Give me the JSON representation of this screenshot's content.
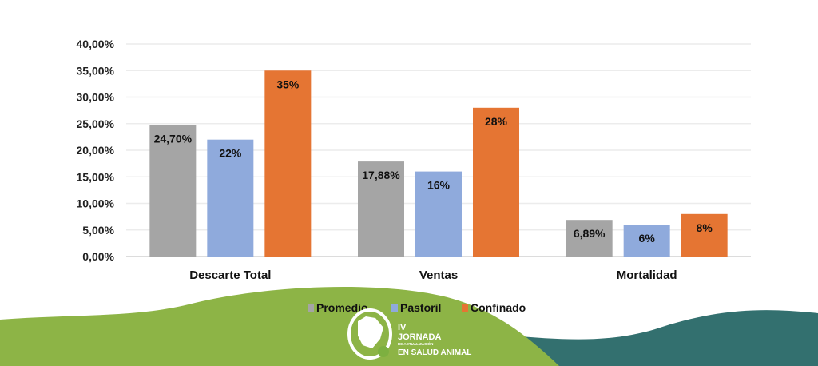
{
  "chart_data": {
    "type": "bar",
    "title": "",
    "xlabel": "",
    "ylabel": "",
    "ylim": [
      0,
      40
    ],
    "yticks": [
      "0,00%",
      "5,00%",
      "10,00%",
      "15,00%",
      "20,00%",
      "25,00%",
      "30,00%",
      "35,00%",
      "40,00%"
    ],
    "grid": true,
    "legend_position": "bottom",
    "categories": [
      "Descarte Total",
      "Ventas",
      "Mortalidad"
    ],
    "series": [
      {
        "name": "Promedio",
        "color": "#A5A5A5",
        "values": [
          24.7,
          17.88,
          6.89
        ],
        "labels": [
          "24,70%",
          "17,88%",
          "6,89%"
        ]
      },
      {
        "name": "Pastoril",
        "color": "#8FAADC",
        "values": [
          22,
          16,
          6
        ],
        "labels": [
          "22%",
          "16%",
          "6%"
        ]
      },
      {
        "name": "Confinado",
        "color": "#E57533",
        "values": [
          35,
          28,
          8
        ],
        "labels": [
          "35%",
          "28%",
          "8%"
        ]
      }
    ]
  },
  "logo": {
    "line1": "IV",
    "line2": "JORNADA",
    "line3": "DE ACTUALIZACIÓN",
    "line4": "EN SALUD ANIMAL"
  },
  "colors": {
    "green": "#8DB446",
    "teal": "#33706F"
  }
}
